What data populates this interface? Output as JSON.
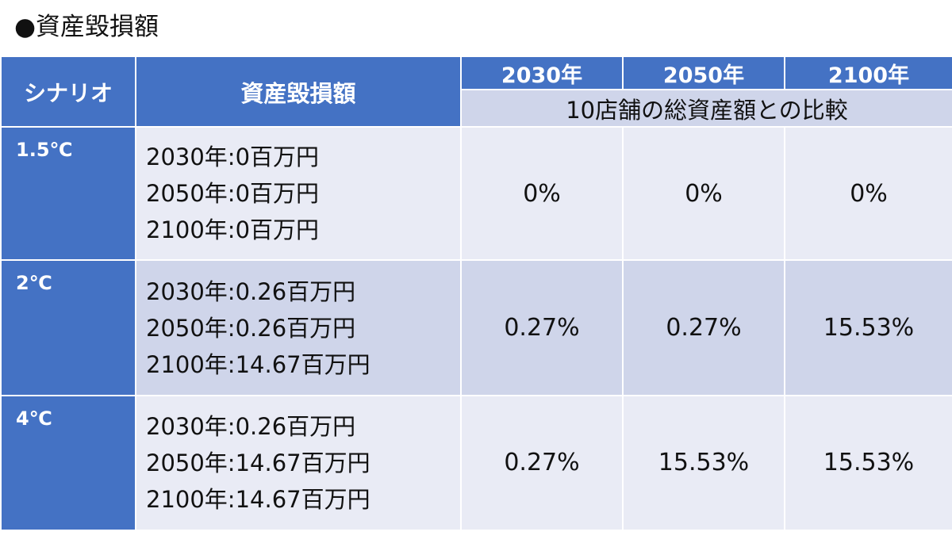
{
  "heading": "●資産毀損額",
  "table": {
    "header": {
      "scenario": "シナリオ",
      "asset_damage": "資産毀損額",
      "years": [
        "2030年",
        "2050年",
        "2100年"
      ],
      "comparison": "10店舗の総資産額との比較"
    },
    "rows": [
      {
        "scenario": "1.5℃",
        "amounts": [
          "2030年:0百万円",
          "2050年:0百万円",
          "2100年:0百万円"
        ],
        "ratios": [
          "0%",
          "0%",
          "0%"
        ]
      },
      {
        "scenario": "2℃",
        "amounts": [
          "2030年:0.26百万円",
          "2050年:0.26百万円",
          "2100年:14.67百万円"
        ],
        "ratios": [
          "0.27%",
          "0.27%",
          "15.53%"
        ]
      },
      {
        "scenario": "4℃",
        "amounts": [
          "2030年:0.26百万円",
          "2050年:14.67百万円",
          "2100年:14.67百万円"
        ],
        "ratios": [
          "0.27%",
          "15.53%",
          "15.53%"
        ]
      }
    ]
  }
}
